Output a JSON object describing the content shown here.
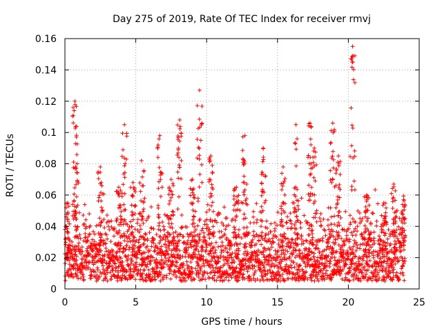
{
  "chart_data": {
    "type": "scatter",
    "title": "Day 275 of 2019, Rate Of TEC Index for receiver rmvj",
    "xlabel": "GPS time / hours",
    "ylabel": "ROTI / TECUs",
    "xlim": [
      0,
      25
    ],
    "ylim": [
      0,
      0.16
    ],
    "xticks": [
      0,
      5,
      10,
      15,
      20,
      25
    ],
    "yticks": [
      0,
      0.02,
      0.04,
      0.06,
      0.08,
      0.1,
      0.12,
      0.14,
      0.16
    ],
    "ytick_labels": [
      "0",
      "0.02",
      "0.04",
      "0.06",
      "0.08",
      "0.1",
      "0.12",
      "0.14",
      "0.16"
    ],
    "grid": true,
    "marker": "+",
    "series_color": "#ff0000",
    "data_time_range": [
      0,
      24
    ],
    "peaks": [
      {
        "x": 0.2,
        "y": 0.055
      },
      {
        "x": 0.7,
        "y": 0.12
      },
      {
        "x": 0.75,
        "y": 0.078
      },
      {
        "x": 2.5,
        "y": 0.078
      },
      {
        "x": 3.8,
        "y": 0.065
      },
      {
        "x": 4.2,
        "y": 0.105
      },
      {
        "x": 4.8,
        "y": 0.068
      },
      {
        "x": 5.4,
        "y": 0.082
      },
      {
        "x": 6.7,
        "y": 0.098
      },
      {
        "x": 7.5,
        "y": 0.07
      },
      {
        "x": 8.1,
        "y": 0.108
      },
      {
        "x": 9.0,
        "y": 0.07
      },
      {
        "x": 9.5,
        "y": 0.127
      },
      {
        "x": 10.3,
        "y": 0.085
      },
      {
        "x": 12.1,
        "y": 0.065
      },
      {
        "x": 12.7,
        "y": 0.098
      },
      {
        "x": 14.0,
        "y": 0.09
      },
      {
        "x": 15.4,
        "y": 0.078
      },
      {
        "x": 16.3,
        "y": 0.105
      },
      {
        "x": 17.3,
        "y": 0.106
      },
      {
        "x": 17.6,
        "y": 0.09
      },
      {
        "x": 18.9,
        "y": 0.106
      },
      {
        "x": 19.3,
        "y": 0.085
      },
      {
        "x": 20.3,
        "y": 0.155
      },
      {
        "x": 21.3,
        "y": 0.06
      },
      {
        "x": 22.5,
        "y": 0.055
      },
      {
        "x": 23.2,
        "y": 0.067
      },
      {
        "x": 23.9,
        "y": 0.057
      }
    ],
    "baseline_range": [
      0.005,
      0.035
    ]
  }
}
